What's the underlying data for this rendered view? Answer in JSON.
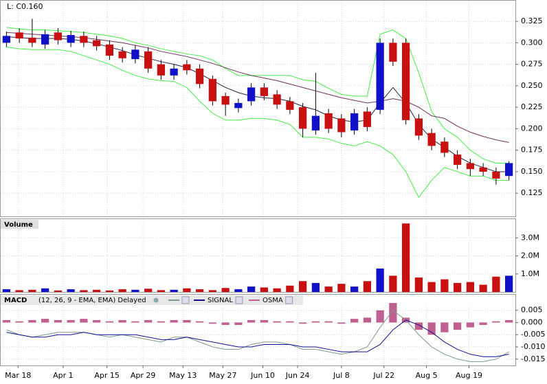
{
  "chart_data": {
    "type": "candlestick",
    "last_label": "L: C0.160",
    "up_color": "#1010c8",
    "down_color": "#c81010",
    "flat_color": "#000000",
    "xlim": [
      -0.5,
      39.5
    ],
    "xticks": [
      {
        "value": 0.9,
        "label": "Mar 18"
      },
      {
        "value": 4.4,
        "label": "Apr 1"
      },
      {
        "value": 7.8,
        "label": "Apr 15"
      },
      {
        "value": 10.6,
        "label": "Apr 29"
      },
      {
        "value": 13.7,
        "label": "May 13"
      },
      {
        "value": 16.8,
        "label": "May 27"
      },
      {
        "value": 19.9,
        "label": "Jun 10"
      },
      {
        "value": 22.6,
        "label": "Jun 24"
      },
      {
        "value": 26.0,
        "label": "Jul 8"
      },
      {
        "value": 29.3,
        "label": "Jul 22"
      },
      {
        "value": 32.6,
        "label": "Aug 5"
      },
      {
        "value": 35.9,
        "label": "Aug 19"
      }
    ],
    "ylim": [
      0.098,
      0.349
    ],
    "yticks": [
      0.325,
      {
        "value": 0.3,
        "label": "0.300"
      },
      0.275,
      {
        "value": 0.25,
        "label": "0.250"
      },
      0.225,
      {
        "value": 0.2,
        "label": "0.200"
      },
      0.175,
      {
        "value": 0.15,
        "label": "0.150"
      },
      0.125
    ],
    "open": [
      0.3,
      0.312,
      0.306,
      0.298,
      0.312,
      0.3,
      0.308,
      0.303,
      0.298,
      0.29,
      0.281,
      0.29,
      0.275,
      0.262,
      0.275,
      0.27,
      0.258,
      0.238,
      0.224,
      0.232,
      0.248,
      0.24,
      0.232,
      0.225,
      0.198,
      0.218,
      0.212,
      0.198,
      0.22,
      0.222,
      0.3,
      0.3,
      0.212,
      0.195,
      0.185,
      0.17,
      0.16,
      0.155,
      0.15,
      0.145
    ],
    "high": [
      0.313,
      0.317,
      0.328,
      0.315,
      0.317,
      0.314,
      0.313,
      0.308,
      0.303,
      0.295,
      0.297,
      0.295,
      0.28,
      0.275,
      0.28,
      0.275,
      0.262,
      0.242,
      0.235,
      0.253,
      0.253,
      0.245,
      0.237,
      0.23,
      0.265,
      0.223,
      0.217,
      0.223,
      0.225,
      0.305,
      0.305,
      0.305,
      0.217,
      0.2,
      0.19,
      0.175,
      0.165,
      0.16,
      0.155,
      0.162
    ],
    "low": [
      0.295,
      0.3,
      0.295,
      0.293,
      0.298,
      0.295,
      0.295,
      0.291,
      0.28,
      0.277,
      0.276,
      0.265,
      0.257,
      0.257,
      0.263,
      0.247,
      0.227,
      0.215,
      0.219,
      0.227,
      0.233,
      0.223,
      0.217,
      0.19,
      0.193,
      0.195,
      0.19,
      0.193,
      0.197,
      0.217,
      0.273,
      0.205,
      0.187,
      0.175,
      0.167,
      0.153,
      0.145,
      0.145,
      0.135,
      0.14
    ],
    "close": [
      0.308,
      0.305,
      0.3,
      0.31,
      0.303,
      0.309,
      0.3,
      0.296,
      0.285,
      0.282,
      0.292,
      0.27,
      0.262,
      0.27,
      0.268,
      0.252,
      0.232,
      0.228,
      0.23,
      0.248,
      0.238,
      0.228,
      0.222,
      0.2,
      0.215,
      0.2,
      0.196,
      0.218,
      0.202,
      0.3,
      0.278,
      0.21,
      0.192,
      0.18,
      0.172,
      0.158,
      0.153,
      0.15,
      0.142,
      0.16
    ],
    "overlays": [
      {
        "color": "#44ee44",
        "values": [
          0.318,
          0.316,
          0.315,
          0.315,
          0.314,
          0.313,
          0.312,
          0.31,
          0.308,
          0.305,
          0.3,
          0.297,
          0.293,
          0.29,
          0.287,
          0.285,
          0.28,
          0.27,
          0.262,
          0.262,
          0.262,
          0.262,
          0.262,
          0.257,
          0.255,
          0.247,
          0.24,
          0.238,
          0.238,
          0.31,
          0.315,
          0.305,
          0.265,
          0.22,
          0.2,
          0.19,
          0.175,
          0.165,
          0.16,
          0.16
        ]
      },
      {
        "color": "#44ee44",
        "values": [
          0.295,
          0.293,
          0.292,
          0.292,
          0.292,
          0.29,
          0.285,
          0.28,
          0.275,
          0.268,
          0.262,
          0.258,
          0.256,
          0.255,
          0.248,
          0.232,
          0.218,
          0.21,
          0.21,
          0.212,
          0.212,
          0.21,
          0.205,
          0.19,
          0.19,
          0.188,
          0.183,
          0.18,
          0.185,
          0.18,
          0.17,
          0.15,
          0.12,
          0.14,
          0.155,
          0.15,
          0.145,
          0.145,
          0.14,
          0.14
        ]
      },
      {
        "color": "#202040",
        "values": [
          0.307,
          0.306,
          0.305,
          0.305,
          0.305,
          0.304,
          0.302,
          0.299,
          0.295,
          0.291,
          0.286,
          0.282,
          0.278,
          0.275,
          0.271,
          0.264,
          0.256,
          0.248,
          0.242,
          0.238,
          0.236,
          0.235,
          0.232,
          0.226,
          0.222,
          0.215,
          0.21,
          0.208,
          0.21,
          0.23,
          0.248,
          0.23,
          0.205,
          0.188,
          0.178,
          0.168,
          0.16,
          0.155,
          0.15,
          0.15
        ]
      },
      {
        "color": "#703060",
        "values": [
          0.312,
          0.311,
          0.31,
          0.309,
          0.308,
          0.307,
          0.306,
          0.304,
          0.302,
          0.3,
          0.297,
          0.294,
          0.29,
          0.287,
          0.284,
          0.28,
          0.276,
          0.271,
          0.266,
          0.262,
          0.259,
          0.256,
          0.252,
          0.248,
          0.244,
          0.24,
          0.236,
          0.233,
          0.23,
          0.232,
          0.235,
          0.232,
          0.225,
          0.215,
          0.212,
          0.203,
          0.196,
          0.191,
          0.187,
          0.184
        ]
      }
    ],
    "volume": {
      "title": "Volume",
      "ylim": [
        0,
        4040000
      ],
      "yticks": [
        {
          "value": 1000000,
          "label": "1.0M"
        },
        {
          "value": 2000000,
          "label": "2.0M"
        },
        {
          "value": 3000000,
          "label": "3.0M"
        }
      ],
      "values": [
        150000,
        100000,
        120000,
        200000,
        80000,
        150000,
        100000,
        120000,
        80000,
        150000,
        120000,
        180000,
        100000,
        120000,
        200000,
        150000,
        100000,
        220000,
        150000,
        300000,
        250000,
        200000,
        350000,
        600000,
        500000,
        300000,
        450000,
        300000,
        600000,
        1300000,
        900000,
        3800000,
        800000,
        550000,
        700000,
        500000,
        550000,
        400000,
        850000,
        900000
      ]
    },
    "macd": {
      "title": "MACD",
      "params": "(12, 26, 9 - EMA, EMA) Delayed",
      "ylim": [
        -0.0176,
        0.0114
      ],
      "yticks": [
        0.005,
        {
          "value": 0,
          "label": "0.000"
        },
        -0.005,
        {
          "value": -0.01,
          "label": "-0.010"
        },
        -0.015
      ],
      "line": {
        "color": "#7a9a8a",
        "values": [
          -0.003,
          -0.005,
          -0.006,
          -0.005,
          -0.004,
          -0.004,
          -0.004,
          -0.005,
          -0.006,
          -0.005,
          -0.006,
          -0.007,
          -0.008,
          -0.006,
          -0.006,
          -0.008,
          -0.01,
          -0.011,
          -0.011,
          -0.009,
          -0.008,
          -0.008,
          -0.009,
          -0.011,
          -0.011,
          -0.012,
          -0.013,
          -0.012,
          -0.01,
          -0.002,
          0.005,
          0.001,
          -0.005,
          -0.01,
          -0.013,
          -0.015,
          -0.016,
          -0.016,
          -0.015,
          -0.012
        ]
      },
      "signal": {
        "name": "SIGNAL",
        "color": "#101090",
        "values": [
          -0.004,
          -0.005,
          -0.006,
          -0.006,
          -0.005,
          -0.005,
          -0.004,
          -0.005,
          -0.005,
          -0.005,
          -0.005,
          -0.006,
          -0.007,
          -0.007,
          -0.006,
          -0.007,
          -0.008,
          -0.009,
          -0.01,
          -0.01,
          -0.009,
          -0.009,
          -0.009,
          -0.01,
          -0.01,
          -0.011,
          -0.012,
          -0.012,
          -0.012,
          -0.009,
          -0.003,
          0.001,
          -0.001,
          -0.004,
          -0.008,
          -0.011,
          -0.013,
          -0.014,
          -0.014,
          -0.013
        ]
      },
      "osma": {
        "name": "OSMA",
        "color": "#c06090",
        "values": [
          0.001,
          0.0005,
          0.001,
          0.0015,
          0.001,
          0.001,
          0.0015,
          0.001,
          0.0005,
          0.001,
          0.0005,
          0.001,
          0.0005,
          0.001,
          0.001,
          0.0005,
          -0.0005,
          -0.001,
          -0.001,
          0.001,
          0.001,
          0.0005,
          0.0005,
          -0.0005,
          0.0005,
          0.0005,
          -0.0005,
          0.0015,
          0.002,
          0.005,
          0.008,
          0.002,
          -0.003,
          -0.005,
          -0.004,
          -0.003,
          -0.002,
          -0.001,
          0.0005,
          0.001
        ]
      }
    }
  }
}
